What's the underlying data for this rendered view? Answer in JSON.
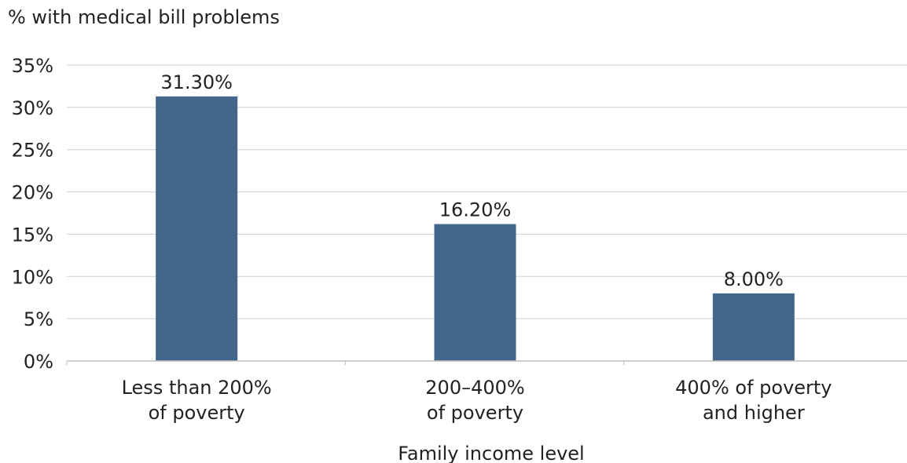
{
  "chart_data": {
    "type": "bar",
    "title": "",
    "ylabel": "% with medical bill problems",
    "xlabel": "Family income level",
    "categories": [
      [
        "Less than 200%",
        "of poverty"
      ],
      [
        "200–400%",
        "of poverty"
      ],
      [
        "400% of poverty",
        "and higher"
      ]
    ],
    "values": [
      31.3,
      16.2,
      8.0
    ],
    "data_labels": [
      "31.30%",
      "16.20%",
      "8.00%"
    ],
    "ylim": [
      0,
      35
    ],
    "yticks": [
      0,
      5,
      10,
      15,
      20,
      25,
      30,
      35
    ],
    "ytick_labels": [
      "0%",
      "5%",
      "10%",
      "15%",
      "20%",
      "25%",
      "30%",
      "35%"
    ],
    "grid": true,
    "legend": "none",
    "colors": {
      "bar": "#41688a",
      "grid": "#cfcfcf",
      "axis": "#bdbdbd"
    }
  }
}
